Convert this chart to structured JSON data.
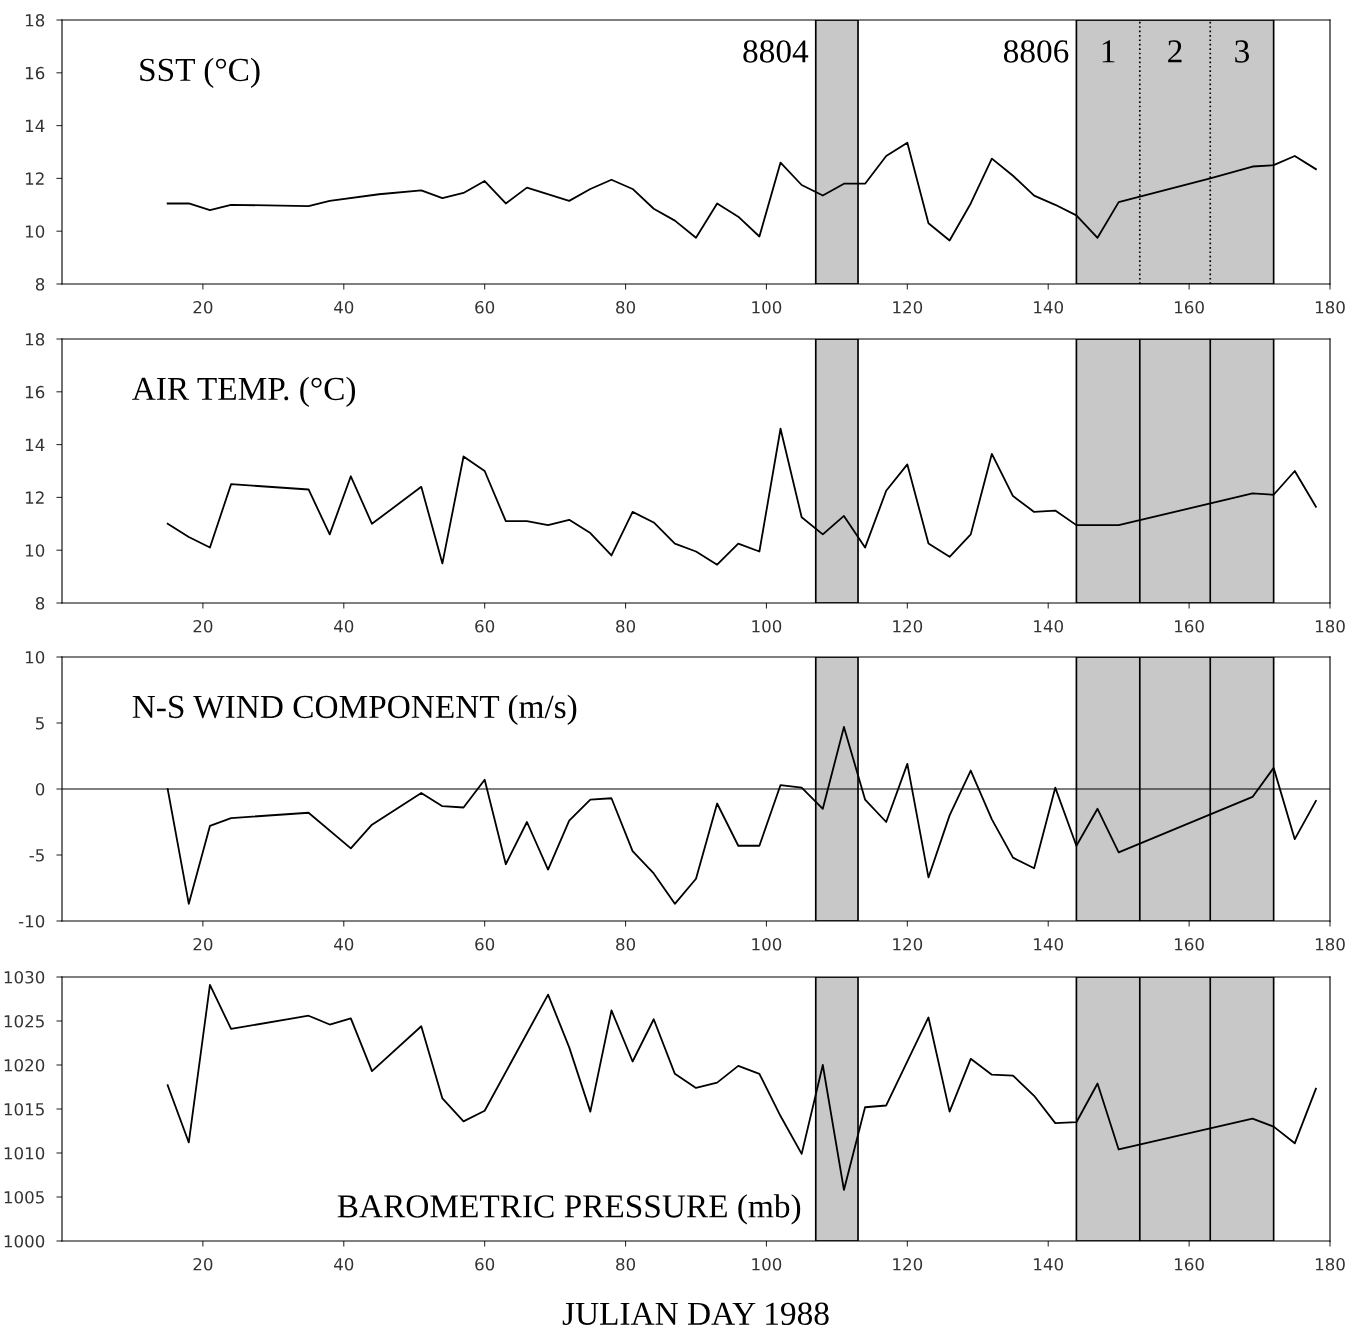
{
  "chart_data": [
    {
      "type": "line",
      "title": "SST (°C)",
      "xlim": [
        0,
        180
      ],
      "xticks": [
        20,
        40,
        60,
        80,
        100,
        120,
        140,
        160,
        180
      ],
      "ylim": [
        8,
        18
      ],
      "yticks": [
        8,
        10,
        12,
        14,
        16,
        18
      ],
      "grid": false,
      "x": [
        15,
        18,
        21,
        24,
        35,
        38,
        45,
        51,
        54,
        57,
        60,
        63,
        66,
        72,
        75,
        78,
        81,
        84,
        87,
        90,
        93,
        96,
        99,
        102,
        105,
        108,
        111,
        114,
        117,
        120,
        123,
        126,
        129,
        132,
        135,
        138,
        141,
        144,
        147,
        150,
        163,
        169,
        172,
        175,
        178
      ],
      "series": [
        {
          "color": "#000000",
          "values": [
            11.05,
            11.05,
            10.8,
            11.0,
            10.95,
            11.15,
            11.4,
            11.55,
            11.25,
            11.45,
            11.9,
            11.05,
            11.65,
            11.15,
            11.6,
            11.95,
            11.6,
            10.85,
            10.4,
            9.75,
            11.05,
            10.55,
            9.8,
            12.6,
            11.75,
            11.35,
            11.8,
            11.8,
            12.85,
            13.35,
            10.3,
            9.65,
            11.05,
            12.75,
            12.1,
            11.35,
            11.0,
            10.6,
            9.75,
            11.1,
            12.0,
            12.45,
            12.5,
            12.85,
            12.35
          ]
        }
      ],
      "bands": [
        {
          "axis": "x",
          "from": 107,
          "to": 113,
          "color": "#c8c8c8",
          "label": "8804"
        },
        {
          "axis": "x",
          "from": 144,
          "to": 172,
          "color": "#c8c8c8",
          "label": "8806"
        }
      ],
      "ref_lines": [
        {
          "axis": "x",
          "value": 153,
          "line_style": "dotted"
        },
        {
          "axis": "x",
          "value": 163,
          "line_style": "dotted"
        }
      ],
      "annotations": [
        "1",
        "2",
        "3"
      ]
    },
    {
      "type": "line",
      "title": "AIR TEMP. (°C)",
      "xlim": [
        0,
        180
      ],
      "xticks": [
        20,
        40,
        60,
        80,
        100,
        120,
        140,
        160,
        180
      ],
      "ylim": [
        8,
        18
      ],
      "yticks": [
        8,
        10,
        12,
        14,
        16,
        18
      ],
      "grid": false,
      "x": [
        15,
        18,
        21,
        24,
        35,
        38,
        41,
        44,
        51,
        54,
        57,
        60,
        63,
        66,
        69,
        72,
        75,
        78,
        81,
        84,
        87,
        90,
        93,
        96,
        99,
        102,
        105,
        108,
        111,
        114,
        117,
        120,
        123,
        126,
        129,
        132,
        135,
        138,
        141,
        144,
        150,
        169,
        172,
        175,
        178
      ],
      "series": [
        {
          "color": "#000000",
          "values": [
            11.0,
            10.5,
            10.1,
            12.5,
            12.3,
            10.6,
            12.8,
            11.0,
            12.4,
            9.5,
            13.55,
            13.0,
            11.1,
            11.1,
            10.95,
            11.15,
            10.65,
            9.8,
            11.45,
            11.05,
            10.25,
            9.95,
            9.45,
            10.25,
            9.95,
            14.6,
            11.25,
            10.6,
            11.3,
            10.1,
            12.25,
            13.25,
            10.25,
            9.75,
            10.6,
            13.65,
            12.05,
            11.45,
            11.5,
            10.95,
            10.95,
            12.15,
            12.1,
            13.0,
            11.65
          ]
        }
      ],
      "bands": [
        {
          "axis": "x",
          "from": 107,
          "to": 113,
          "color": "#c8c8c8"
        },
        {
          "axis": "x",
          "from": 144,
          "to": 172,
          "color": "#c8c8c8"
        }
      ],
      "ref_lines": [
        {
          "axis": "x",
          "value": 153,
          "line_style": "solid"
        },
        {
          "axis": "x",
          "value": 163,
          "line_style": "solid"
        }
      ]
    },
    {
      "type": "line",
      "title": "N-S WIND COMPONENT (m/s)",
      "xlim": [
        0,
        180
      ],
      "xticks": [
        20,
        40,
        60,
        80,
        100,
        120,
        140,
        160,
        180
      ],
      "ylim": [
        -10,
        10
      ],
      "yticks": [
        -10,
        -5,
        0,
        5,
        10
      ],
      "grid": false,
      "x": [
        15,
        18,
        21,
        24,
        35,
        41,
        44,
        51,
        54,
        57,
        60,
        63,
        66,
        69,
        72,
        75,
        78,
        81,
        84,
        87,
        90,
        93,
        96,
        99,
        102,
        105,
        108,
        111,
        114,
        117,
        120,
        123,
        126,
        129,
        132,
        135,
        138,
        141,
        144,
        147,
        150,
        169,
        172,
        175,
        178
      ],
      "series": [
        {
          "color": "#000000",
          "values": [
            0,
            -8.7,
            -2.8,
            -2.2,
            -1.8,
            -4.5,
            -2.7,
            -0.3,
            -1.3,
            -1.4,
            0.7,
            -5.7,
            -2.5,
            -6.1,
            -2.4,
            -0.8,
            -0.7,
            -4.7,
            -6.4,
            -8.7,
            -6.8,
            -1.1,
            -4.3,
            -4.3,
            0.3,
            0.1,
            -1.5,
            4.7,
            -0.8,
            -2.5,
            1.9,
            -6.7,
            -2.0,
            1.4,
            -2.3,
            -5.2,
            -6.0,
            0.1,
            -4.3,
            -1.5,
            -4.8,
            -0.6,
            1.6,
            -3.8,
            -0.9
          ]
        }
      ],
      "bands": [
        {
          "axis": "x",
          "from": 107,
          "to": 113,
          "color": "#c8c8c8"
        },
        {
          "axis": "x",
          "from": 144,
          "to": 172,
          "color": "#c8c8c8"
        }
      ],
      "ref_lines": [
        {
          "axis": "x",
          "value": 153,
          "line_style": "solid"
        },
        {
          "axis": "x",
          "value": 163,
          "line_style": "solid"
        },
        {
          "axis": "y",
          "value": 0,
          "line_style": "solid"
        }
      ]
    },
    {
      "type": "line",
      "title": "BAROMETRIC PRESSURE (mb)",
      "xlabel": "JULIAN DAY 1988",
      "xlim": [
        0,
        180
      ],
      "xticks": [
        20,
        40,
        60,
        80,
        100,
        120,
        140,
        160,
        180
      ],
      "ylim": [
        1000,
        1030
      ],
      "yticks": [
        1000,
        1005,
        1010,
        1015,
        1020,
        1025,
        1030
      ],
      "grid": false,
      "x": [
        15,
        18,
        21,
        24,
        35,
        38,
        41,
        44,
        51,
        54,
        57,
        60,
        69,
        72,
        75,
        78,
        81,
        84,
        87,
        90,
        93,
        96,
        99,
        102,
        105,
        108,
        111,
        114,
        117,
        123,
        126,
        129,
        132,
        135,
        138,
        141,
        144,
        147,
        150,
        169,
        172,
        175,
        178
      ],
      "series": [
        {
          "color": "#000000",
          "values": [
            1017.7,
            1011.2,
            1029.1,
            1024.1,
            1025.6,
            1024.6,
            1025.3,
            1019.3,
            1024.4,
            1016.2,
            1013.6,
            1014.8,
            1028.0,
            1022.0,
            1014.7,
            1026.2,
            1020.4,
            1025.2,
            1019.0,
            1017.4,
            1018.0,
            1019.9,
            1019.0,
            1014.2,
            1009.9,
            1020.0,
            1005.8,
            1015.2,
            1015.4,
            1025.4,
            1014.7,
            1020.7,
            1018.9,
            1018.8,
            1016.5,
            1013.4,
            1013.5,
            1017.9,
            1010.4,
            1013.9,
            1013.0,
            1011.1,
            1017.3
          ]
        }
      ],
      "bands": [
        {
          "axis": "x",
          "from": 107,
          "to": 113,
          "color": "#c8c8c8"
        },
        {
          "axis": "x",
          "from": 144,
          "to": 172,
          "color": "#c8c8c8"
        }
      ],
      "ref_lines": [
        {
          "axis": "x",
          "value": 153,
          "line_style": "solid"
        },
        {
          "axis": "x",
          "value": 163,
          "line_style": "solid"
        }
      ]
    }
  ]
}
